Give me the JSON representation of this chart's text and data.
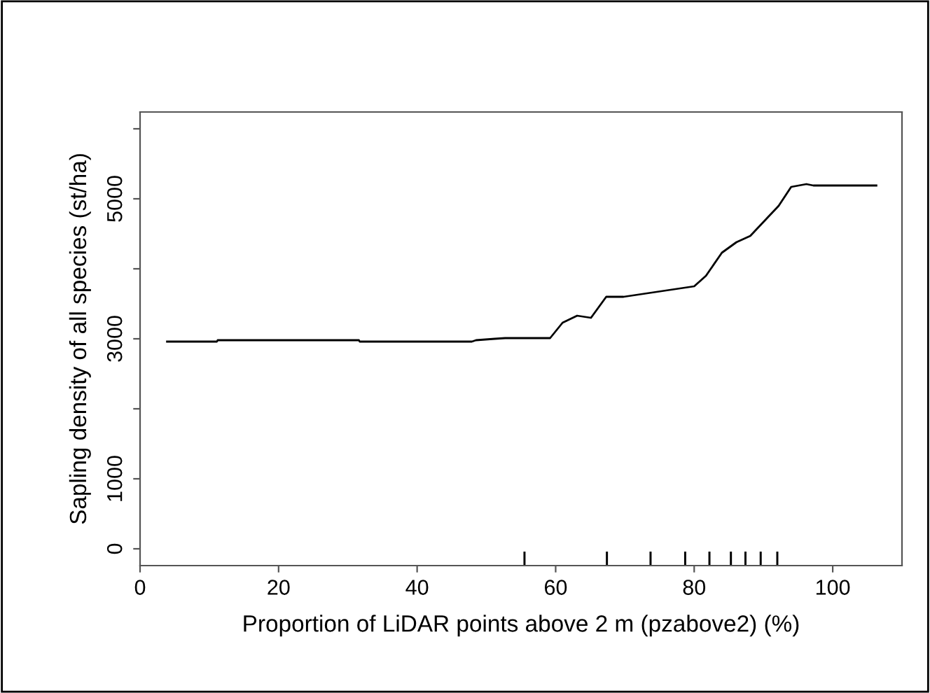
{
  "chart_data": {
    "type": "line",
    "xlabel": "Proportion of LiDAR points above 2 m (pzabove2) (%)",
    "ylabel": "Sapling density of all species (st/ha)",
    "xlim": [
      0,
      110
    ],
    "xticks": [
      0,
      20,
      40,
      60,
      80,
      100
    ],
    "ylim": [
      -240,
      6240
    ],
    "yticks": [
      0,
      1000,
      {
        "value": 2000,
        "label": null
      },
      3000,
      {
        "value": 4000,
        "label": null
      },
      5000,
      {
        "value": 6000,
        "label": null
      }
    ],
    "grid": false,
    "legend": false,
    "series": [
      {
        "color": "#000000",
        "x": [
          3.9,
          11.1,
          11.2,
          31.6,
          31.7,
          47.9,
          48.5,
          51.2,
          52.7,
          59.2,
          61.0,
          63.1,
          65.1,
          67.3,
          69.8,
          80.0,
          81.7,
          84.0,
          86.1,
          88.1,
          92.2,
          94.0,
          96.2,
          97.2,
          106.3
        ],
        "values": [
          2960,
          2960,
          2980,
          2980,
          2960,
          2960,
          2980,
          3000,
          3010,
          3010,
          3230,
          3330,
          3300,
          3600,
          3600,
          3750,
          3900,
          4230,
          4380,
          4470,
          4900,
          5170,
          5210,
          5190,
          5190
        ]
      },
      {
        "type": "bar",
        "color": "#000000",
        "x": [
          55.5,
          67.4,
          73.7,
          78.7,
          82.2,
          85.3,
          87.4,
          89.6,
          92.0
        ],
        "base": [
          -240,
          -240,
          -240,
          -240,
          -240,
          -240,
          -240,
          -240,
          -240
        ],
        "values": [
          200,
          200,
          200,
          200,
          200,
          200,
          200,
          200,
          200
        ]
      }
    ]
  }
}
